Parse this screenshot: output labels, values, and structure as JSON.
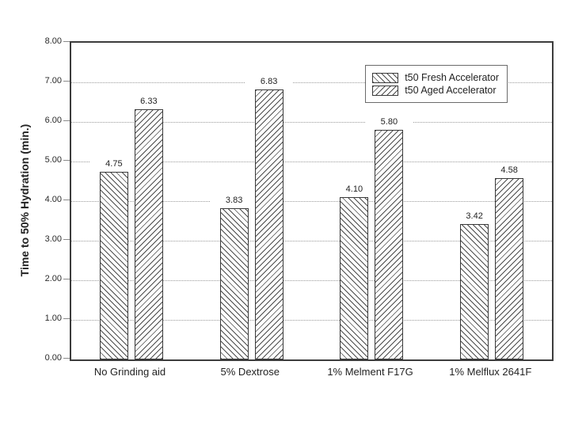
{
  "chart_data": {
    "type": "bar",
    "categories": [
      "No Grinding aid",
      "5% Dextrose",
      "1% Melment F17G",
      "1% Melflux 2641F"
    ],
    "series": [
      {
        "name": "t50 Fresh Accelerator",
        "hatch": "backslash",
        "values": [
          4.75,
          3.83,
          4.1,
          3.42
        ],
        "labels": [
          "4.75",
          "3.83",
          "4.10",
          "3.42"
        ]
      },
      {
        "name": "t50 Aged Accelerator",
        "hatch": "forwardslash",
        "values": [
          6.33,
          6.83,
          5.8,
          4.58
        ],
        "labels": [
          "6.33",
          "6.83",
          "5.80",
          "4.58"
        ]
      }
    ],
    "title": "",
    "xlabel": "",
    "ylabel": "Time to 50% Hydration (min.)",
    "ylim": [
      0,
      8
    ],
    "yticks": [
      "0.00",
      "1.00",
      "2.00",
      "3.00",
      "4.00",
      "5.00",
      "6.00",
      "7.00",
      "8.00"
    ],
    "grid": "horizontal-dotted",
    "legend_position": "top-right-inside",
    "colors": {
      "axis": "#3c3c3c",
      "gridline": "#9a9a9a",
      "hatch_line": "#4a4a4a",
      "bar_fill": "#ffffff",
      "text": "#222222"
    }
  }
}
